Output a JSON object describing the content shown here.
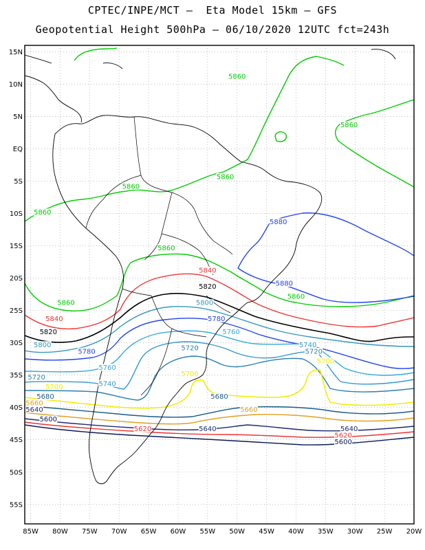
{
  "header": {
    "title_line1": "CPTEC/INPE/MCT –  Eta Model 15km – GFS",
    "title_line2": "Geopotential Height 500hPa – 06/10/2020 12UTC fct=243h"
  },
  "axes": {
    "lat_labels": [
      "15N",
      "10N",
      "5N",
      "EQ",
      "5S",
      "10S",
      "15S",
      "20S",
      "25S",
      "30S",
      "35S",
      "40S",
      "45S",
      "50S",
      "55S"
    ],
    "lon_labels": [
      "85W",
      "80W",
      "75W",
      "70W",
      "65W",
      "60W",
      "55W",
      "50W",
      "45W",
      "40W",
      "35W",
      "30W",
      "25W",
      "20W"
    ],
    "lat_range": [
      -58,
      16
    ],
    "lon_range": [
      -86,
      -20
    ],
    "grid": "dotted"
  },
  "colors": {
    "c5860": "#00cc00",
    "c5840": "#ee3333",
    "c5820": "#000000",
    "c5800": "#3399bb",
    "c5780": "#2244ee",
    "c5760": "#33aadd",
    "c5740": "#3399cc",
    "c5720": "#2a7fb0",
    "c5700": "#eeee00",
    "c5680": "#1a5a8a",
    "c5660": "#e0a020",
    "c5640": "#1a2a70",
    "c5620": "#ee3333",
    "c5600": "#0a1a55",
    "c5880": "#2244ee"
  },
  "contour_labels": [
    {
      "text": "5860",
      "color": "c5860",
      "lon": -50,
      "lat": 11
    },
    {
      "text": "5860",
      "color": "c5860",
      "lon": -31,
      "lat": 3.5
    },
    {
      "text": "5860",
      "color": "c5860",
      "lon": -52,
      "lat": -4.5
    },
    {
      "text": "5860",
      "color": "c5860",
      "lon": -68,
      "lat": -6
    },
    {
      "text": "5860",
      "color": "c5860",
      "lon": -83,
      "lat": -10
    },
    {
      "text": "5860",
      "color": "c5860",
      "lon": -62,
      "lat": -15.5
    },
    {
      "text": "5860",
      "color": "c5860",
      "lon": -79,
      "lat": -24
    },
    {
      "text": "5860",
      "color": "c5860",
      "lon": -40,
      "lat": -23
    },
    {
      "text": "5880",
      "color": "c5880",
      "lon": -43,
      "lat": -11.5
    },
    {
      "text": "5880",
      "color": "c5880",
      "lon": -42,
      "lat": -21
    },
    {
      "text": "5840",
      "color": "c5840",
      "lon": -55,
      "lat": -19
    },
    {
      "text": "5840",
      "color": "c5840",
      "lon": -81,
      "lat": -26.5
    },
    {
      "text": "5820",
      "color": "c5820",
      "lon": -55,
      "lat": -21.5
    },
    {
      "text": "5820",
      "color": "c5820",
      "lon": -82,
      "lat": -28.5
    },
    {
      "text": "5800",
      "color": "c5800",
      "lon": -55.5,
      "lat": -24
    },
    {
      "text": "5800",
      "color": "c5800",
      "lon": -83,
      "lat": -30.5
    },
    {
      "text": "5780",
      "color": "c5780",
      "lon": -53.5,
      "lat": -26.5
    },
    {
      "text": "5780",
      "color": "c5780",
      "lon": -75.5,
      "lat": -31.5
    },
    {
      "text": "5760",
      "color": "c5760",
      "lon": -51,
      "lat": -28.5
    },
    {
      "text": "5760",
      "color": "c5760",
      "lon": -72,
      "lat": -34
    },
    {
      "text": "5740",
      "color": "c5740",
      "lon": -38,
      "lat": -30.5
    },
    {
      "text": "5740",
      "color": "c5740",
      "lon": -72,
      "lat": -36.5
    },
    {
      "text": "5720",
      "color": "c5720",
      "lon": -58,
      "lat": -31
    },
    {
      "text": "5720",
      "color": "c5720",
      "lon": -37,
      "lat": -31.5
    },
    {
      "text": "5720",
      "color": "c5720",
      "lon": -84,
      "lat": -35.5
    },
    {
      "text": "5700",
      "color": "c5700",
      "lon": -35,
      "lat": -33
    },
    {
      "text": "5700",
      "color": "c5700",
      "lon": -58,
      "lat": -35
    },
    {
      "text": "5700",
      "color": "c5700",
      "lon": -81,
      "lat": -37
    },
    {
      "text": "5680",
      "color": "c5680",
      "lon": -53,
      "lat": -38.5
    },
    {
      "text": "5680",
      "color": "c5680",
      "lon": -82.5,
      "lat": -38.5
    },
    {
      "text": "5660",
      "color": "c5660",
      "lon": -48,
      "lat": -40.5
    },
    {
      "text": "5660",
      "color": "c5660",
      "lon": -86,
      "lat": -39.5
    },
    {
      "text": "5640",
      "color": "c5640",
      "lon": -85,
      "lat": -40.5
    },
    {
      "text": "5640",
      "color": "c5640",
      "lon": -55,
      "lat": -43.5
    },
    {
      "text": "5640",
      "color": "c5640",
      "lon": -31,
      "lat": -43.5
    },
    {
      "text": "5620",
      "color": "c5620",
      "lon": -66,
      "lat": -43.5
    },
    {
      "text": "5620",
      "color": "c5620",
      "lon": -32,
      "lat": -44.5
    },
    {
      "text": "5600",
      "color": "c5600",
      "lon": -82,
      "lat": -42
    },
    {
      "text": "5600",
      "color": "c5600",
      "lon": -32,
      "lat": -45.5
    }
  ]
}
